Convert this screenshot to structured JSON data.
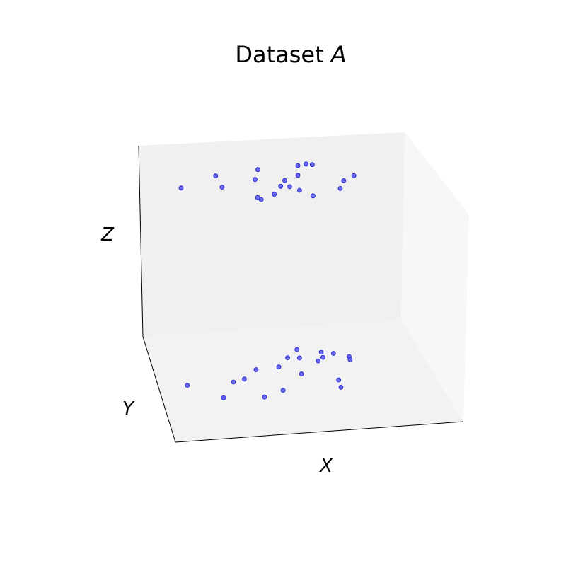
{
  "chart_data": {
    "type": "scatter",
    "projection": "3d",
    "title": {
      "prefix": "Dataset ",
      "var": "A"
    },
    "xlabel": "X",
    "ylabel": "Y",
    "zlabel": "Z",
    "ticks_visible": false,
    "grid": false,
    "colors": {
      "marker_fill": "#6666ee",
      "marker_edge": "#2222cc",
      "pane": "#f2f2f2"
    },
    "series": [
      {
        "clusters": [
          {
            "z": 1.0,
            "points": [
              {
                "x": 0.1,
                "y": 0.58
              },
              {
                "x": 0.23,
                "y": 0.67
              },
              {
                "x": 0.24,
                "y": 0.56
              },
              {
                "x": 0.36,
                "y": 0.61
              },
              {
                "x": 0.38,
                "y": 0.7
              },
              {
                "x": 0.35,
                "y": 0.44
              },
              {
                "x": 0.36,
                "y": 0.42
              },
              {
                "x": 0.41,
                "y": 0.46
              },
              {
                "x": 0.44,
                "y": 0.53
              },
              {
                "x": 0.46,
                "y": 0.58
              },
              {
                "x": 0.47,
                "y": 0.52
              },
              {
                "x": 0.5,
                "y": 0.48
              },
              {
                "x": 0.51,
                "y": 0.62
              },
              {
                "x": 0.52,
                "y": 0.71
              },
              {
                "x": 0.54,
                "y": 0.42
              },
              {
                "x": 0.55,
                "y": 0.72
              },
              {
                "x": 0.57,
                "y": 0.71
              },
              {
                "x": 0.64,
                "y": 0.47
              },
              {
                "x": 0.66,
                "y": 0.54
              },
              {
                "x": 0.7,
                "y": 0.58
              }
            ]
          },
          {
            "z": 0.0,
            "points": [
              {
                "x": 0.1,
                "y": 0.52
              },
              {
                "x": 0.21,
                "y": 0.38
              },
              {
                "x": 0.26,
                "y": 0.52
              },
              {
                "x": 0.3,
                "y": 0.54
              },
              {
                "x": 0.35,
                "y": 0.62
              },
              {
                "x": 0.35,
                "y": 0.36
              },
              {
                "x": 0.42,
                "y": 0.41
              },
              {
                "x": 0.43,
                "y": 0.63
              },
              {
                "x": 0.47,
                "y": 0.71
              },
              {
                "x": 0.5,
                "y": 0.55
              },
              {
                "x": 0.51,
                "y": 0.78
              },
              {
                "x": 0.51,
                "y": 0.7
              },
              {
                "x": 0.57,
                "y": 0.66
              },
              {
                "x": 0.59,
                "y": 0.74
              },
              {
                "x": 0.59,
                "y": 0.69
              },
              {
                "x": 0.63,
                "y": 0.72
              },
              {
                "x": 0.62,
                "y": 0.47
              },
              {
                "x": 0.62,
                "y": 0.4
              },
              {
                "x": 0.68,
                "y": 0.68
              },
              {
                "x": 0.68,
                "y": 0.65
              }
            ]
          }
        ]
      }
    ]
  }
}
